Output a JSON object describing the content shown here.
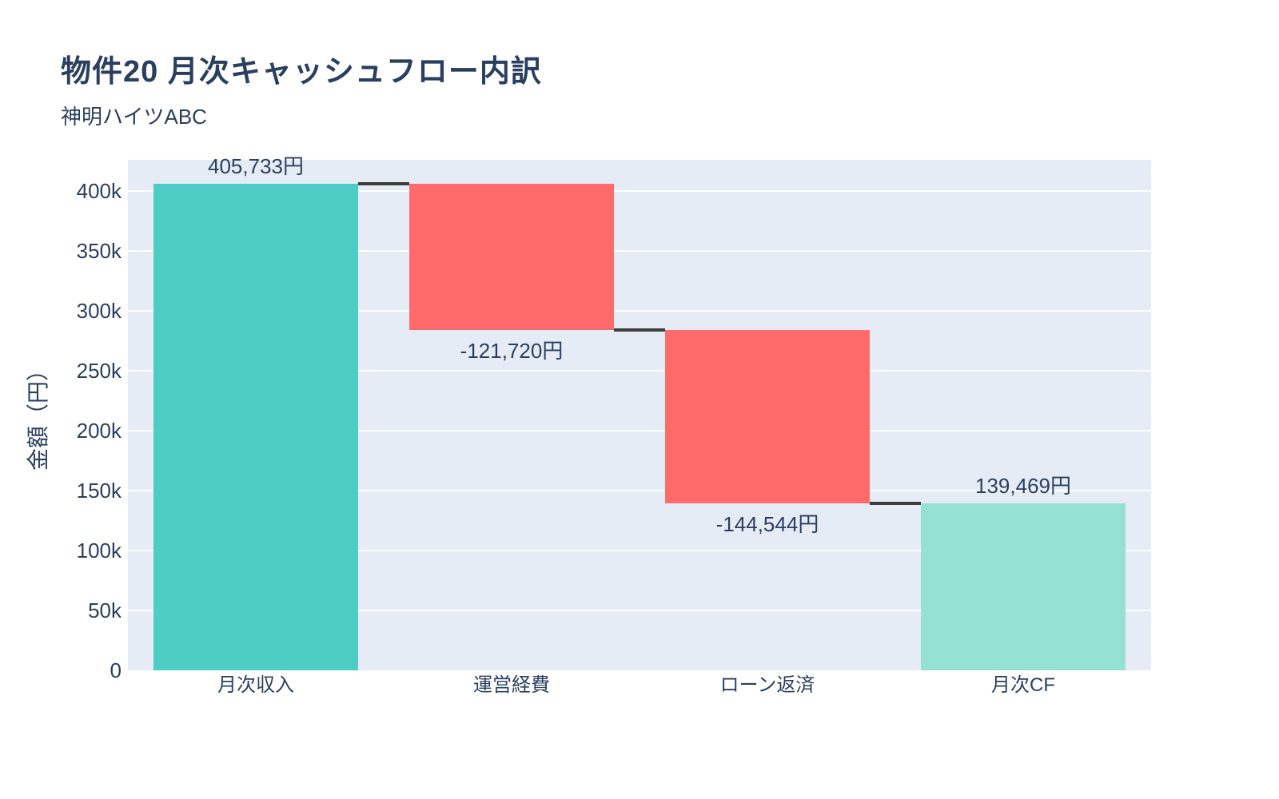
{
  "chart_data": {
    "type": "waterfall",
    "title": "物件20 月次キャッシュフロー内訳",
    "subtitle": "神明ハイツABC",
    "categories": [
      "月次収入",
      "運営経費",
      "ローン返済",
      "月次CF"
    ],
    "values": [
      405733,
      -121720,
      -144544,
      139469
    ],
    "measures": [
      "relative",
      "relative",
      "relative",
      "total"
    ],
    "bar_labels": [
      "405,733円",
      "-121,720円",
      "-144,544円",
      "139,469円"
    ],
    "label_positions": [
      "top",
      "bottom",
      "bottom",
      "top"
    ],
    "cumulative_levels": [
      405733,
      284013,
      139469,
      139469
    ],
    "xlabel": "",
    "ylabel": "金額（円）",
    "ylim": [
      0,
      426020
    ],
    "ytick_step": 50000,
    "ytick_labels": [
      "0",
      "50k",
      "100k",
      "150k",
      "200k",
      "250k",
      "300k",
      "350k",
      "400k"
    ],
    "grid": true,
    "legend": false,
    "colors": {
      "increasing": "#4ECDC4",
      "decreasing": "#FF6B6B",
      "total": "#95E1D3",
      "connector": "#3d3d3d",
      "plot_background": "#E5ECF6",
      "gridline": "#FFFFFF",
      "text": "#2A3F5F"
    }
  }
}
